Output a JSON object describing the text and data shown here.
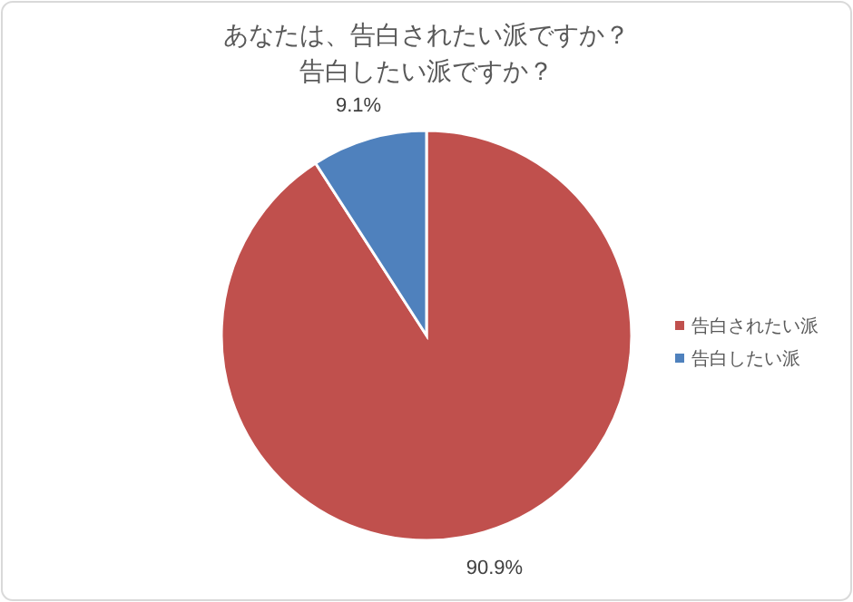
{
  "chart_data": {
    "type": "pie",
    "title": "あなたは、告白されたい派ですか？",
    "subtitle": "告白したい派ですか？",
    "categories": [
      "告白されたい派",
      "告白したい派"
    ],
    "values": [
      90.9,
      9.1
    ],
    "colors": [
      "#c0504d",
      "#4f81bd"
    ],
    "value_labels": [
      "90.9%",
      "9.1%"
    ],
    "legend": "right"
  }
}
